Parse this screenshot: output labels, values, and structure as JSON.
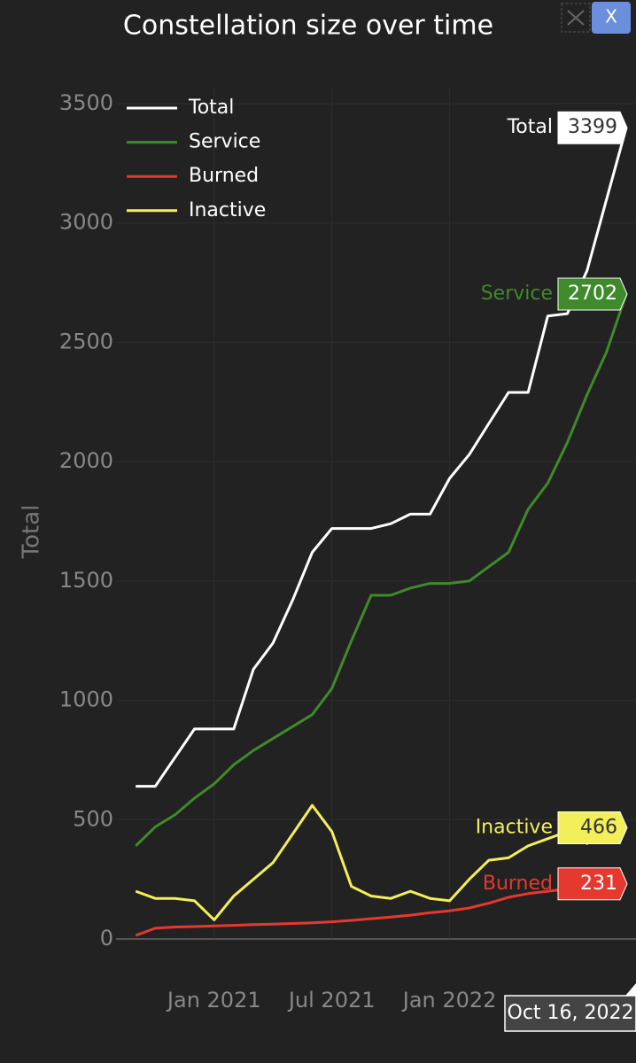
{
  "chart_data": {
    "type": "line",
    "title": "Constellation size over time",
    "ylabel": "Total",
    "x": [
      "2020-09",
      "2020-10",
      "2020-11",
      "2020-12",
      "2021-01",
      "2021-02",
      "2021-03",
      "2021-04",
      "2021-05",
      "2021-06",
      "2021-07",
      "2021-08",
      "2021-09",
      "2021-10",
      "2021-11",
      "2021-12",
      "2022-01",
      "2022-02",
      "2022-03",
      "2022-04",
      "2022-05",
      "2022-06",
      "2022-07",
      "2022-08",
      "2022-09",
      "2022-10"
    ],
    "series": [
      {
        "name": "Total",
        "color": "#ffffff",
        "values": [
          640,
          640,
          760,
          880,
          880,
          880,
          1130,
          1240,
          1420,
          1620,
          1720,
          1720,
          1720,
          1740,
          1780,
          1780,
          1930,
          2030,
          2160,
          2290,
          2290,
          2610,
          2620,
          2800,
          3100,
          3399
        ]
      },
      {
        "name": "Service",
        "color": "#3f8a2a",
        "values": [
          390,
          470,
          520,
          590,
          650,
          730,
          790,
          840,
          890,
          940,
          1050,
          1250,
          1440,
          1440,
          1470,
          1490,
          1490,
          1500,
          1560,
          1620,
          1800,
          1910,
          2080,
          2280,
          2460,
          2702
        ]
      },
      {
        "name": "Burned",
        "color": "#e5392f",
        "values": [
          15,
          45,
          50,
          52,
          55,
          57,
          60,
          62,
          65,
          68,
          72,
          78,
          85,
          92,
          100,
          110,
          118,
          130,
          150,
          175,
          190,
          200,
          210,
          218,
          225,
          231
        ]
      },
      {
        "name": "Inactive",
        "color": "#f3ef5a",
        "values": [
          200,
          170,
          170,
          160,
          80,
          180,
          250,
          320,
          440,
          560,
          450,
          220,
          180,
          170,
          200,
          170,
          160,
          250,
          330,
          340,
          390,
          420,
          450,
          400,
          450,
          466
        ]
      }
    ],
    "xlim": [
      "2020-08",
      "2022-10"
    ],
    "xticks": [
      {
        "value": "2021-01",
        "label": "Jan 2021"
      },
      {
        "value": "2021-07",
        "label": "Jul 2021"
      },
      {
        "value": "2022-01",
        "label": "Jan 2022"
      }
    ],
    "ylim": [
      0,
      3500
    ],
    "yticks": [
      0,
      500,
      1000,
      1500,
      2000,
      2500,
      3000,
      3500
    ],
    "grid": true,
    "legend": "top-left",
    "hover_label": "Oct 16, 2022",
    "close_button": "X"
  }
}
